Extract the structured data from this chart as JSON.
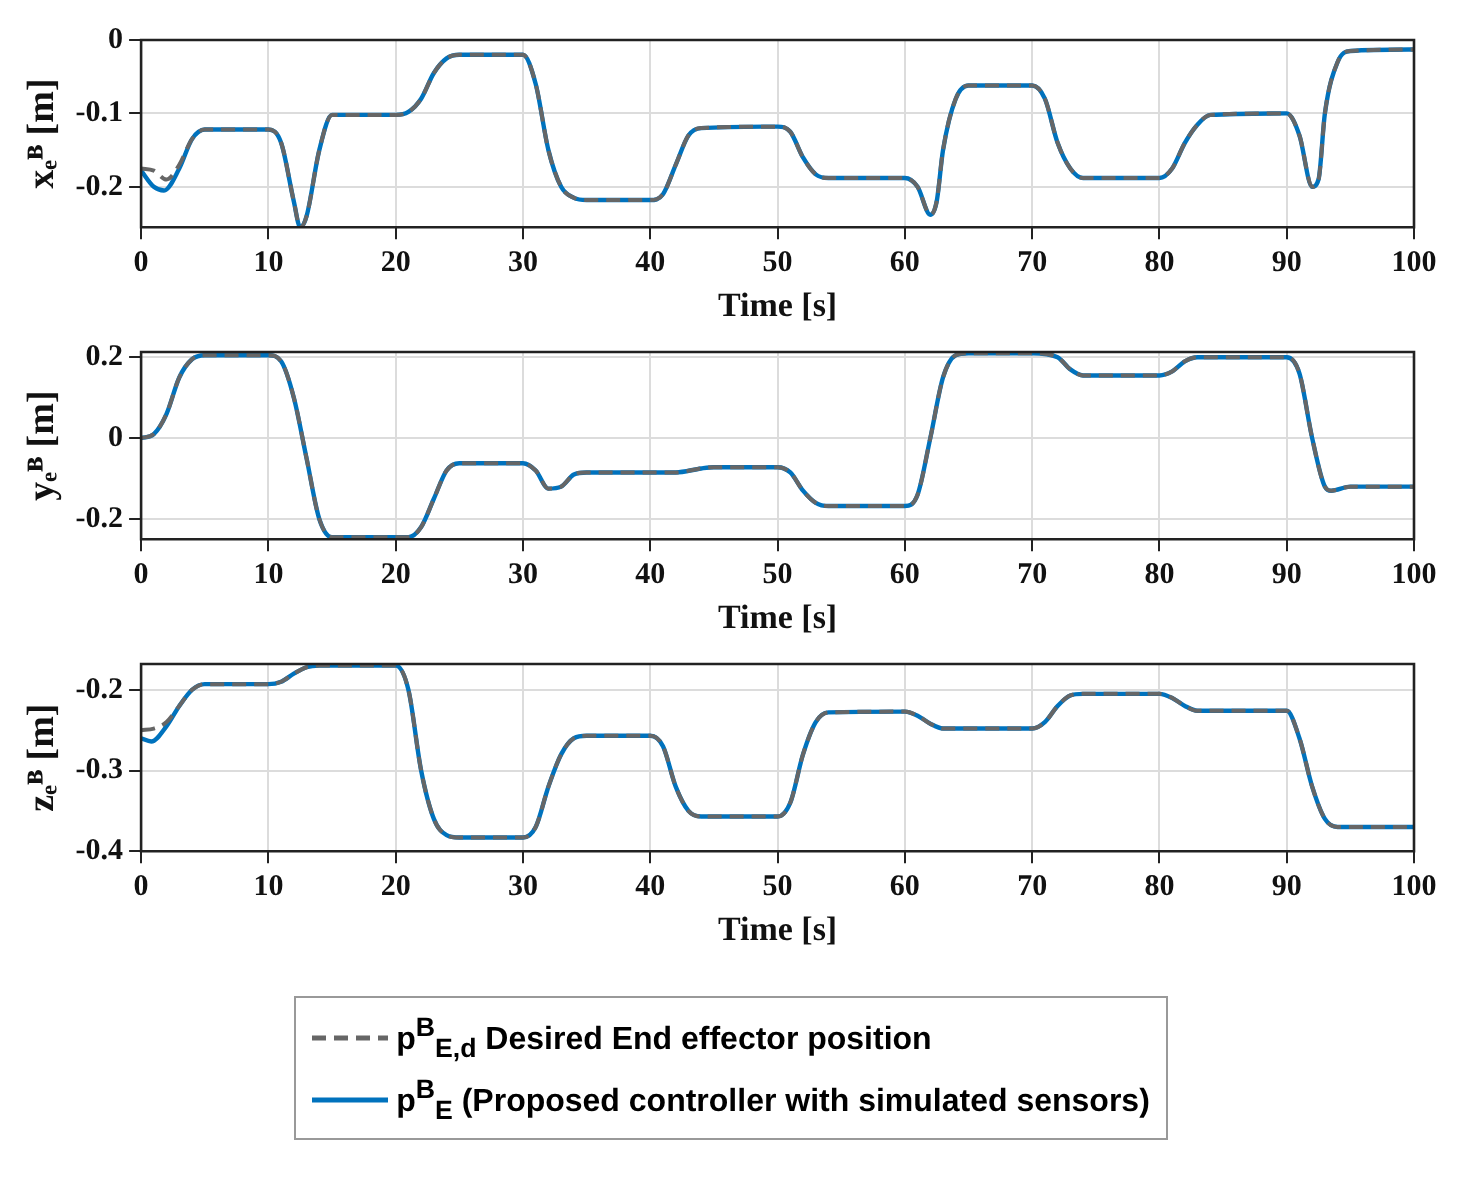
{
  "chart_data": [
    {
      "type": "line",
      "xlabel": "Time [s]",
      "ylabel": "xₑᴮ [m]",
      "xlim": [
        0,
        100
      ],
      "xticks": [
        0,
        10,
        20,
        30,
        40,
        50,
        60,
        70,
        80,
        90,
        100
      ],
      "ylim": [
        -0.255,
        0
      ],
      "yticks": [
        -0.2,
        -0.1,
        0
      ],
      "grid": true,
      "legend": false,
      "series": [
        {
          "color": "#666666",
          "line_style": "dashed",
          "x": [
            0,
            1,
            2,
            3,
            4,
            5,
            10,
            11,
            12,
            12.5,
            13,
            14,
            15,
            20,
            21,
            22,
            23,
            24,
            25,
            30,
            31,
            32,
            33,
            34,
            35,
            40,
            41,
            42,
            43,
            44,
            50,
            51,
            52,
            53,
            54,
            60,
            61,
            62,
            62.5,
            63,
            64,
            65,
            70,
            71,
            72,
            73,
            74,
            80,
            81,
            82,
            83,
            84,
            90,
            91,
            92,
            92.5,
            93,
            94,
            95,
            100
          ],
          "values": [
            -0.175,
            -0.178,
            -0.19,
            -0.17,
            -0.135,
            -0.122,
            -0.122,
            -0.14,
            -0.22,
            -0.255,
            -0.24,
            -0.15,
            -0.102,
            -0.102,
            -0.098,
            -0.08,
            -0.045,
            -0.025,
            -0.02,
            -0.02,
            -0.06,
            -0.15,
            -0.2,
            -0.215,
            -0.218,
            -0.218,
            -0.21,
            -0.17,
            -0.13,
            -0.12,
            -0.118,
            -0.125,
            -0.16,
            -0.183,
            -0.188,
            -0.188,
            -0.2,
            -0.238,
            -0.22,
            -0.15,
            -0.08,
            -0.062,
            -0.062,
            -0.08,
            -0.14,
            -0.175,
            -0.188,
            -0.188,
            -0.175,
            -0.14,
            -0.115,
            -0.102,
            -0.1,
            -0.13,
            -0.2,
            -0.19,
            -0.1,
            -0.03,
            -0.015,
            -0.013
          ]
        },
        {
          "color": "#0072bd",
          "line_style": "solid",
          "x": [
            0,
            1,
            1.8,
            3,
            4,
            5,
            10,
            11,
            12,
            12.5,
            13,
            14,
            15,
            20,
            21,
            22,
            23,
            24,
            25,
            30,
            31,
            32,
            33,
            34,
            35,
            40,
            41,
            42,
            43,
            44,
            50,
            51,
            52,
            53,
            54,
            60,
            61,
            62,
            62.5,
            63,
            64,
            65,
            70,
            71,
            72,
            73,
            74,
            80,
            81,
            82,
            83,
            84,
            90,
            91,
            92,
            92.5,
            93,
            94,
            95,
            100
          ],
          "values": [
            -0.178,
            -0.2,
            -0.205,
            -0.175,
            -0.135,
            -0.122,
            -0.122,
            -0.14,
            -0.22,
            -0.255,
            -0.24,
            -0.15,
            -0.102,
            -0.102,
            -0.098,
            -0.08,
            -0.045,
            -0.025,
            -0.02,
            -0.02,
            -0.06,
            -0.15,
            -0.2,
            -0.215,
            -0.218,
            -0.218,
            -0.21,
            -0.17,
            -0.13,
            -0.12,
            -0.118,
            -0.125,
            -0.16,
            -0.183,
            -0.188,
            -0.188,
            -0.2,
            -0.238,
            -0.22,
            -0.15,
            -0.08,
            -0.062,
            -0.062,
            -0.08,
            -0.14,
            -0.175,
            -0.188,
            -0.188,
            -0.175,
            -0.14,
            -0.115,
            -0.102,
            -0.1,
            -0.13,
            -0.2,
            -0.19,
            -0.1,
            -0.03,
            -0.015,
            -0.013
          ]
        }
      ]
    },
    {
      "type": "line",
      "xlabel": "Time [s]",
      "ylabel": "yₑᴮ [m]",
      "xlim": [
        0,
        100
      ],
      "xticks": [
        0,
        10,
        20,
        30,
        40,
        50,
        60,
        70,
        80,
        90,
        100
      ],
      "ylim": [
        -0.25,
        0.213
      ],
      "yticks": [
        -0.2,
        0,
        0.2
      ],
      "grid": true,
      "legend": false,
      "series": [
        {
          "color": "#666666",
          "line_style": "dashed",
          "x": [
            0,
            1,
            2,
            3,
            4,
            5,
            10,
            11,
            12,
            13,
            14,
            15,
            20,
            21,
            22,
            23,
            24,
            25,
            30,
            31,
            32,
            33,
            34,
            35,
            42,
            44,
            45,
            50,
            51,
            52,
            53,
            54,
            60,
            61,
            62,
            63,
            64,
            65,
            70,
            72,
            73,
            74,
            80,
            81,
            82,
            83,
            90,
            91,
            92,
            93,
            93.5,
            95,
            100
          ],
          "values": [
            0,
            0.01,
            0.06,
            0.15,
            0.195,
            0.205,
            0.205,
            0.19,
            0.1,
            -0.05,
            -0.2,
            -0.245,
            -0.245,
            -0.245,
            -0.22,
            -0.15,
            -0.08,
            -0.062,
            -0.062,
            -0.08,
            -0.125,
            -0.12,
            -0.09,
            -0.085,
            -0.085,
            -0.075,
            -0.072,
            -0.072,
            -0.085,
            -0.13,
            -0.16,
            -0.168,
            -0.168,
            -0.14,
            0,
            0.15,
            0.205,
            0.21,
            0.21,
            0.2,
            0.17,
            0.155,
            0.155,
            0.165,
            0.19,
            0.2,
            0.2,
            0.16,
            0,
            -0.12,
            -0.13,
            -0.12,
            -0.12
          ]
        },
        {
          "color": "#0072bd",
          "line_style": "solid",
          "x": [
            0,
            1,
            2,
            3,
            4,
            5,
            10,
            11,
            12,
            13,
            14,
            15,
            20,
            21,
            22,
            23,
            24,
            25,
            30,
            31,
            32,
            33,
            34,
            35,
            42,
            44,
            45,
            50,
            51,
            52,
            53,
            54,
            60,
            61,
            62,
            63,
            64,
            65,
            70,
            72,
            73,
            74,
            80,
            81,
            82,
            83,
            90,
            91,
            92,
            93,
            93.5,
            95,
            100
          ],
          "values": [
            0,
            0.01,
            0.06,
            0.15,
            0.195,
            0.205,
            0.205,
            0.19,
            0.1,
            -0.05,
            -0.2,
            -0.245,
            -0.245,
            -0.245,
            -0.22,
            -0.15,
            -0.08,
            -0.062,
            -0.062,
            -0.08,
            -0.125,
            -0.12,
            -0.09,
            -0.085,
            -0.085,
            -0.075,
            -0.072,
            -0.072,
            -0.085,
            -0.13,
            -0.16,
            -0.168,
            -0.168,
            -0.14,
            0,
            0.15,
            0.205,
            0.21,
            0.21,
            0.2,
            0.17,
            0.155,
            0.155,
            0.165,
            0.19,
            0.2,
            0.2,
            0.16,
            0,
            -0.12,
            -0.13,
            -0.12,
            -0.12
          ]
        }
      ]
    },
    {
      "type": "line",
      "xlabel": "Time [s]",
      "ylabel": "zₑᴮ [m]",
      "xlim": [
        0,
        100
      ],
      "xticks": [
        0,
        10,
        20,
        30,
        40,
        50,
        60,
        70,
        80,
        90,
        100
      ],
      "ylim": [
        -0.4,
        -0.168
      ],
      "yticks": [
        -0.4,
        -0.3,
        -0.2
      ],
      "grid": true,
      "legend": "bottom",
      "series": [
        {
          "name": "p$^{B}$$_{E,d}$ Desired End effector position",
          "color": "#666666",
          "line_style": "dashed",
          "x": [
            0,
            1,
            2,
            3,
            4,
            5,
            10,
            11,
            12,
            13,
            14,
            20,
            21,
            22,
            23,
            24,
            25,
            30,
            31,
            32,
            33,
            34,
            35,
            40,
            41,
            42,
            43,
            44,
            50,
            51,
            52,
            53,
            54,
            60,
            61,
            62,
            63,
            70,
            71,
            72,
            73,
            74,
            80,
            81,
            82,
            83,
            90,
            91,
            92,
            93,
            94,
            100
          ],
          "values": [
            -0.25,
            -0.248,
            -0.24,
            -0.22,
            -0.2,
            -0.193,
            -0.193,
            -0.19,
            -0.18,
            -0.172,
            -0.17,
            -0.17,
            -0.2,
            -0.3,
            -0.36,
            -0.38,
            -0.383,
            -0.383,
            -0.37,
            -0.32,
            -0.28,
            -0.26,
            -0.257,
            -0.257,
            -0.27,
            -0.32,
            -0.35,
            -0.357,
            -0.357,
            -0.34,
            -0.28,
            -0.24,
            -0.228,
            -0.227,
            -0.232,
            -0.242,
            -0.248,
            -0.248,
            -0.24,
            -0.22,
            -0.207,
            -0.205,
            -0.205,
            -0.21,
            -0.22,
            -0.226,
            -0.226,
            -0.26,
            -0.32,
            -0.36,
            -0.37,
            -0.37
          ]
        },
        {
          "name": "p$^{B}$$_{E}$ (Proposed controller with simulated sensors)",
          "color": "#0072bd",
          "line_style": "solid",
          "x": [
            0,
            0.8,
            2,
            3,
            4,
            5,
            10,
            11,
            12,
            13,
            14,
            20,
            21,
            22,
            23,
            24,
            25,
            30,
            31,
            32,
            33,
            34,
            35,
            40,
            41,
            42,
            43,
            44,
            50,
            51,
            52,
            53,
            54,
            60,
            61,
            62,
            63,
            70,
            71,
            72,
            73,
            74,
            80,
            81,
            82,
            83,
            90,
            91,
            92,
            93,
            94,
            100
          ],
          "values": [
            -0.26,
            -0.264,
            -0.245,
            -0.22,
            -0.2,
            -0.193,
            -0.193,
            -0.19,
            -0.18,
            -0.172,
            -0.17,
            -0.17,
            -0.2,
            -0.3,
            -0.36,
            -0.38,
            -0.383,
            -0.383,
            -0.37,
            -0.32,
            -0.28,
            -0.26,
            -0.257,
            -0.257,
            -0.27,
            -0.32,
            -0.35,
            -0.357,
            -0.357,
            -0.34,
            -0.28,
            -0.24,
            -0.228,
            -0.227,
            -0.232,
            -0.242,
            -0.248,
            -0.248,
            -0.24,
            -0.22,
            -0.207,
            -0.205,
            -0.205,
            -0.21,
            -0.22,
            -0.226,
            -0.226,
            -0.26,
            -0.32,
            -0.36,
            -0.37,
            -0.37
          ]
        }
      ]
    }
  ]
}
